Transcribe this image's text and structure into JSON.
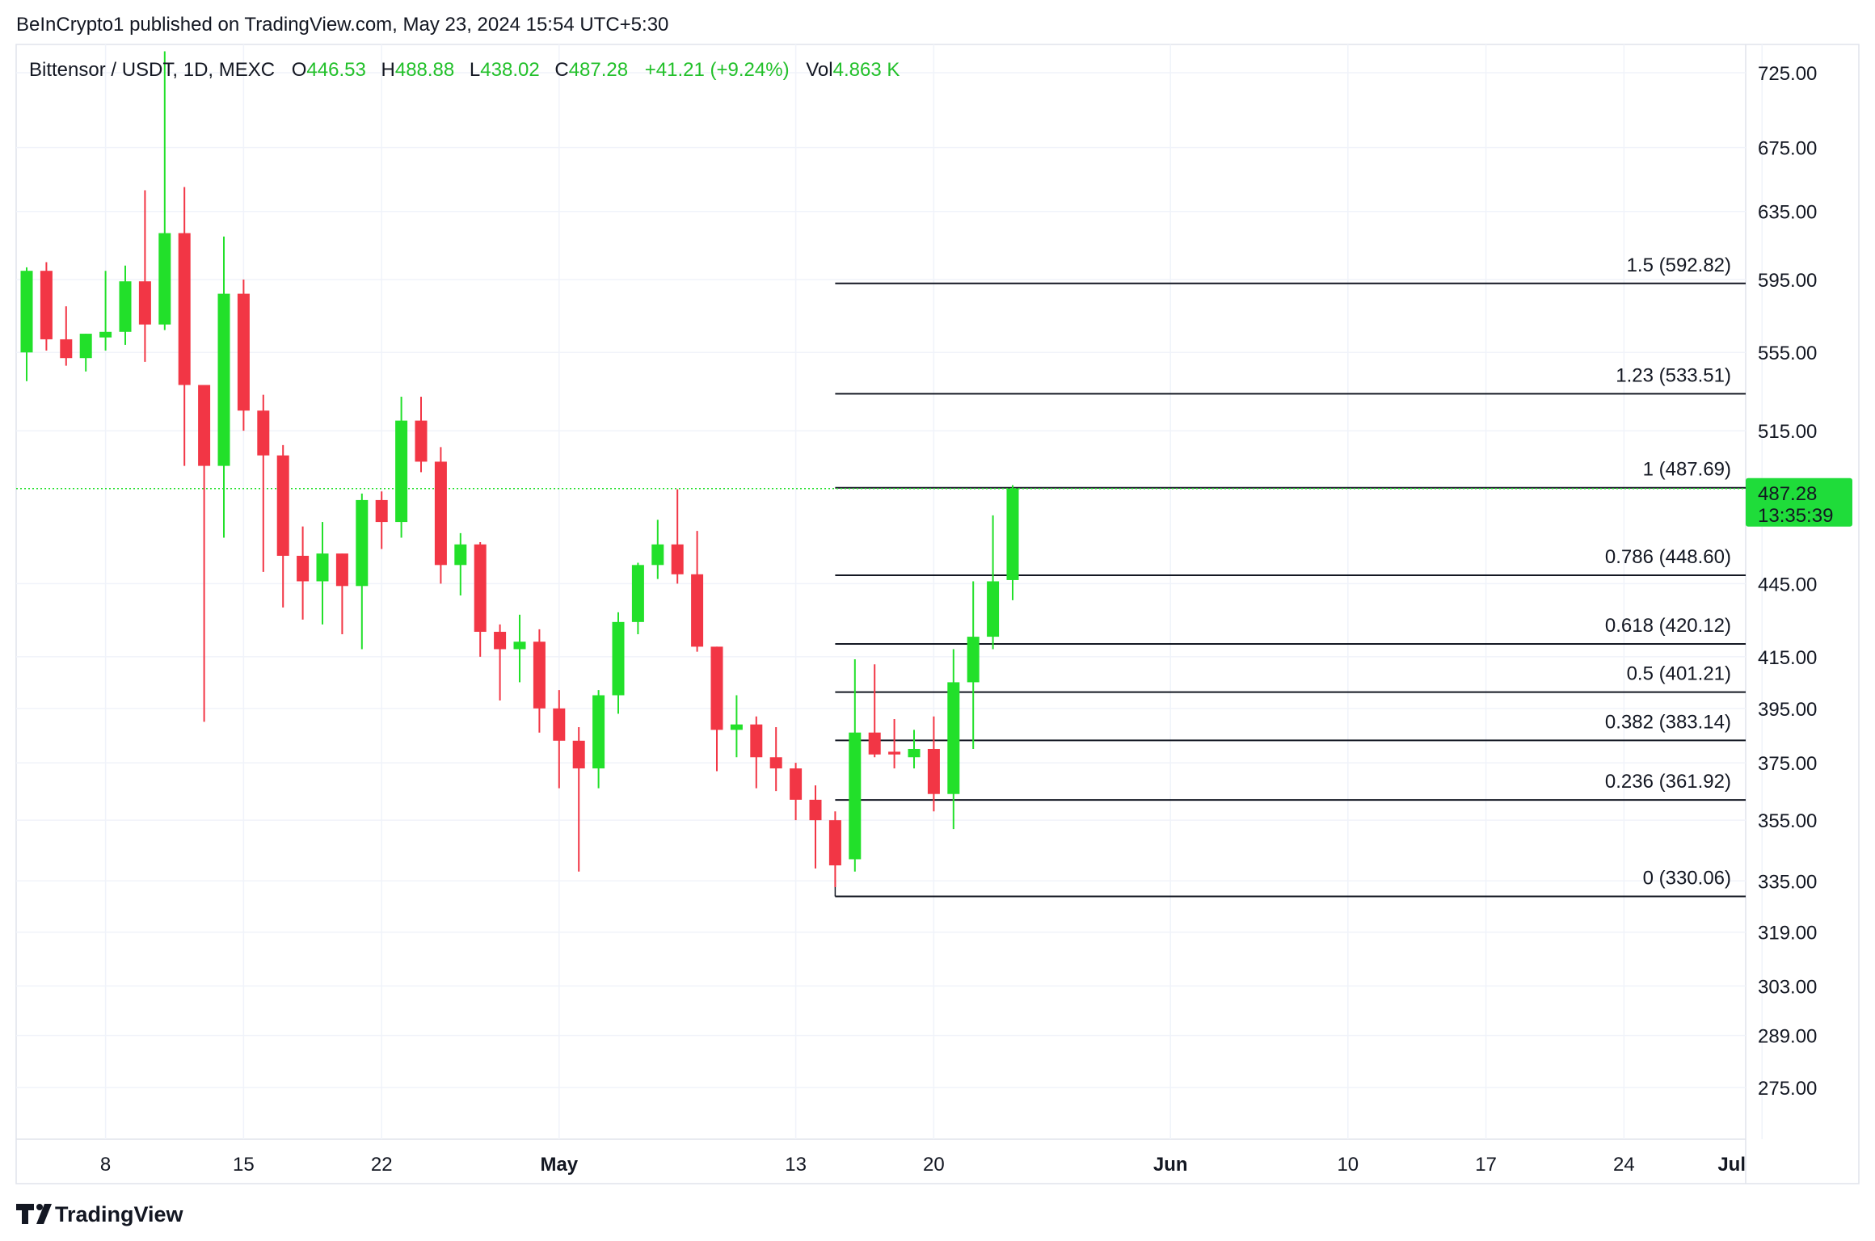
{
  "header": {
    "publisher_line": "BeInCrypto1 published on TradingView.com, May 23, 2024 15:54 UTC+5:30"
  },
  "legend": {
    "symbol": "Bittensor / USDT, 1D, MEXC",
    "open_label": "O",
    "open_value": "446.53",
    "high_label": "H",
    "high_value": "488.88",
    "low_label": "L",
    "low_value": "438.02",
    "close_label": "C",
    "close_value": "487.28",
    "change": "+41.21 (+9.24%)",
    "vol_label": "Vol",
    "vol_value": "4.863 K"
  },
  "price_tag": {
    "price": "487.28",
    "countdown": "13:35:39"
  },
  "footer": {
    "brand": "TradingView",
    "logo": "tradingview-logo-icon"
  },
  "colors": {
    "up": "#22e02a",
    "down": "#f23645",
    "grid": "#f0f3fa",
    "axis_text": "#131722",
    "fib_line": "#131722",
    "price_tag": "#1fdc3a"
  },
  "chart_data": {
    "type": "candlestick",
    "title": "Bittensor / USDT, 1D, MEXC",
    "interval": "1D",
    "grid": true,
    "y_axis": {
      "position": "right",
      "scale": "log",
      "ticks": [
        "725.00",
        "675.00",
        "635.00",
        "595.00",
        "555.00",
        "515.00",
        "445.00",
        "415.00",
        "395.00",
        "375.00",
        "355.00",
        "335.00",
        "319.00",
        "303.00",
        "289.00",
        "275.00"
      ]
    },
    "x_axis": {
      "ticks": [
        {
          "label": "8",
          "date": "2024-04-08",
          "bold": false
        },
        {
          "label": "15",
          "date": "2024-04-15",
          "bold": false
        },
        {
          "label": "22",
          "date": "2024-04-22",
          "bold": false
        },
        {
          "label": "May",
          "date": "2024-05-01",
          "bold": true
        },
        {
          "label": "13",
          "date": "2024-05-13",
          "bold": false
        },
        {
          "label": "20",
          "date": "2024-05-20",
          "bold": false
        },
        {
          "label": "Jun",
          "date": "2024-06-01",
          "bold": true
        },
        {
          "label": "10",
          "date": "2024-06-10",
          "bold": false
        },
        {
          "label": "17",
          "date": "2024-06-17",
          "bold": false
        },
        {
          "label": "24",
          "date": "2024-06-24",
          "bold": false
        },
        {
          "label": "Jul",
          "date": "2024-07-01",
          "bold": true
        }
      ]
    },
    "candles": [
      {
        "date": "2024-04-04",
        "o": 555,
        "h": 602,
        "l": 540,
        "c": 600
      },
      {
        "date": "2024-04-05",
        "o": 600,
        "h": 605,
        "l": 556,
        "c": 562
      },
      {
        "date": "2024-04-06",
        "o": 562,
        "h": 580,
        "l": 548,
        "c": 552
      },
      {
        "date": "2024-04-07",
        "o": 552,
        "h": 565,
        "l": 545,
        "c": 565
      },
      {
        "date": "2024-04-08",
        "o": 563,
        "h": 600,
        "l": 556,
        "c": 566
      },
      {
        "date": "2024-04-09",
        "o": 566,
        "h": 603,
        "l": 559,
        "c": 594
      },
      {
        "date": "2024-04-10",
        "o": 594,
        "h": 648,
        "l": 550,
        "c": 570
      },
      {
        "date": "2024-04-11",
        "o": 570,
        "h": 740,
        "l": 567,
        "c": 622
      },
      {
        "date": "2024-04-12",
        "o": 622,
        "h": 650,
        "l": 498,
        "c": 538
      },
      {
        "date": "2024-04-13",
        "o": 538,
        "h": 538,
        "l": 390,
        "c": 498
      },
      {
        "date": "2024-04-14",
        "o": 498,
        "h": 620,
        "l": 465,
        "c": 587
      },
      {
        "date": "2024-04-15",
        "o": 587,
        "h": 595,
        "l": 515,
        "c": 525
      },
      {
        "date": "2024-04-16",
        "o": 525,
        "h": 533,
        "l": 450,
        "c": 503
      },
      {
        "date": "2024-04-17",
        "o": 503,
        "h": 508,
        "l": 435,
        "c": 457
      },
      {
        "date": "2024-04-18",
        "o": 457,
        "h": 470,
        "l": 430,
        "c": 446
      },
      {
        "date": "2024-04-19",
        "o": 446,
        "h": 472,
        "l": 428,
        "c": 458
      },
      {
        "date": "2024-04-20",
        "o": 458,
        "h": 458,
        "l": 424,
        "c": 444
      },
      {
        "date": "2024-04-21",
        "o": 444,
        "h": 485,
        "l": 418,
        "c": 482
      },
      {
        "date": "2024-04-22",
        "o": 482,
        "h": 486,
        "l": 460,
        "c": 472
      },
      {
        "date": "2024-04-23",
        "o": 472,
        "h": 532,
        "l": 465,
        "c": 520
      },
      {
        "date": "2024-04-24",
        "o": 520,
        "h": 532,
        "l": 495,
        "c": 500
      },
      {
        "date": "2024-04-25",
        "o": 500,
        "h": 507,
        "l": 445,
        "c": 453
      },
      {
        "date": "2024-04-26",
        "o": 453,
        "h": 467,
        "l": 440,
        "c": 462
      },
      {
        "date": "2024-04-27",
        "o": 462,
        "h": 463,
        "l": 415,
        "c": 425
      },
      {
        "date": "2024-04-28",
        "o": 425,
        "h": 428,
        "l": 398,
        "c": 418
      },
      {
        "date": "2024-04-29",
        "o": 418,
        "h": 432,
        "l": 405,
        "c": 421
      },
      {
        "date": "2024-04-30",
        "o": 421,
        "h": 426,
        "l": 386,
        "c": 395
      },
      {
        "date": "2024-05-01",
        "o": 395,
        "h": 402,
        "l": 366,
        "c": 383
      },
      {
        "date": "2024-05-02",
        "o": 383,
        "h": 388,
        "l": 338,
        "c": 373
      },
      {
        "date": "2024-05-03",
        "o": 373,
        "h": 402,
        "l": 366,
        "c": 400
      },
      {
        "date": "2024-05-04",
        "o": 400,
        "h": 433,
        "l": 393,
        "c": 429
      },
      {
        "date": "2024-05-05",
        "o": 429,
        "h": 454,
        "l": 424,
        "c": 453
      },
      {
        "date": "2024-05-06",
        "o": 453,
        "h": 473,
        "l": 447,
        "c": 462
      },
      {
        "date": "2024-05-07",
        "o": 462,
        "h": 487,
        "l": 445,
        "c": 449
      },
      {
        "date": "2024-05-08",
        "o": 449,
        "h": 468,
        "l": 417,
        "c": 419
      },
      {
        "date": "2024-05-09",
        "o": 419,
        "h": 419,
        "l": 372,
        "c": 387
      },
      {
        "date": "2024-05-10",
        "o": 387,
        "h": 400,
        "l": 377,
        "c": 389
      },
      {
        "date": "2024-05-11",
        "o": 389,
        "h": 392,
        "l": 366,
        "c": 377
      },
      {
        "date": "2024-05-12",
        "o": 377,
        "h": 388,
        "l": 365,
        "c": 373
      },
      {
        "date": "2024-05-13",
        "o": 373,
        "h": 375,
        "l": 355,
        "c": 362
      },
      {
        "date": "2024-05-14",
        "o": 362,
        "h": 367,
        "l": 339,
        "c": 355
      },
      {
        "date": "2024-05-15",
        "o": 355,
        "h": 358,
        "l": 333,
        "c": 340
      },
      {
        "date": "2024-05-16",
        "o": 342,
        "h": 414,
        "l": 338,
        "c": 386
      },
      {
        "date": "2024-05-17",
        "o": 386,
        "h": 412,
        "l": 377,
        "c": 378
      },
      {
        "date": "2024-05-18",
        "o": 379,
        "h": 391,
        "l": 373,
        "c": 378
      },
      {
        "date": "2024-05-19",
        "o": 377,
        "h": 387,
        "l": 373,
        "c": 380
      },
      {
        "date": "2024-05-20",
        "o": 380,
        "h": 392,
        "l": 358,
        "c": 364
      },
      {
        "date": "2024-05-21",
        "o": 364,
        "h": 418,
        "l": 352,
        "c": 405
      },
      {
        "date": "2024-05-22",
        "o": 405,
        "h": 446,
        "l": 380,
        "c": 423
      },
      {
        "date": "2024-05-23",
        "o": 423,
        "h": 475,
        "l": 418,
        "c": 446
      },
      {
        "date": "2024-05-24",
        "o": 446.53,
        "h": 488.88,
        "l": 438.02,
        "c": 487.28
      }
    ],
    "current_price": 487.28,
    "fib_retracement": {
      "start_date": "2024-05-15",
      "end_date": "2024-07-01",
      "levels": [
        {
          "ratio": "1.5",
          "price": 592.82,
          "label": "1.5 (592.82)"
        },
        {
          "ratio": "1.23",
          "price": 533.51,
          "label": "1.23 (533.51)"
        },
        {
          "ratio": "1",
          "price": 487.69,
          "label": "1 (487.69)"
        },
        {
          "ratio": "0.786",
          "price": 448.6,
          "label": "0.786 (448.60)"
        },
        {
          "ratio": "0.618",
          "price": 420.12,
          "label": "0.618 (420.12)"
        },
        {
          "ratio": "0.5",
          "price": 401.21,
          "label": "0.5 (401.21)"
        },
        {
          "ratio": "0.382",
          "price": 383.14,
          "label": "0.382 (383.14)"
        },
        {
          "ratio": "0.236",
          "price": 361.92,
          "label": "0.236 (361.92)"
        },
        {
          "ratio": "0",
          "price": 330.06,
          "label": "0 (330.06)"
        }
      ]
    }
  }
}
